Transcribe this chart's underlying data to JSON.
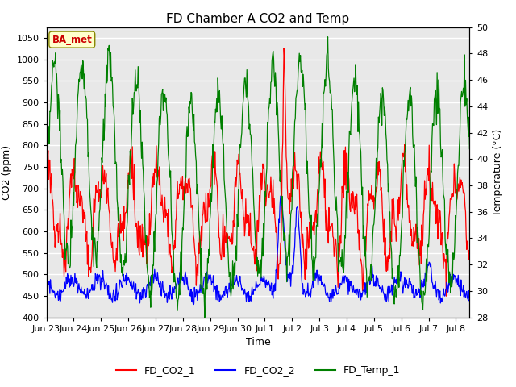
{
  "title": "FD Chamber A CO2 and Temp",
  "xlabel": "Time",
  "ylabel_left": "CO2 (ppm)",
  "ylabel_right": "Temperature (°C)",
  "ylim_left": [
    400,
    1075
  ],
  "ylim_right": [
    28,
    50
  ],
  "yticks_left": [
    400,
    450,
    500,
    550,
    600,
    650,
    700,
    750,
    800,
    850,
    900,
    950,
    1000,
    1050
  ],
  "yticks_right": [
    28,
    30,
    32,
    34,
    36,
    38,
    40,
    42,
    44,
    46,
    48,
    50
  ],
  "xtick_labels": [
    "Jun 23",
    "Jun 24",
    "Jun 25",
    "Jun 26",
    "Jun 27",
    "Jun 28",
    "Jun 29",
    "Jun 30",
    "Jul 1",
    "Jul 2",
    "Jul 3",
    "Jul 4",
    "Jul 5",
    "Jul 6",
    "Jul 7",
    "Jul 8"
  ],
  "legend_labels": [
    "FD_CO2_1",
    "FD_CO2_2",
    "FD_Temp_1"
  ],
  "legend_colors": [
    "red",
    "blue",
    "green"
  ],
  "annotation_text": "BA_met",
  "annotation_color": "#cc0000",
  "annotation_bg": "#ffffcc",
  "plot_bg": "#e8e8e8",
  "grid_color": "white",
  "title_fontsize": 11,
  "label_fontsize": 9,
  "tick_fontsize": 8,
  "n_days": 15.5,
  "xlim": [
    0,
    15.5
  ],
  "figsize": [
    6.4,
    4.8
  ],
  "dpi": 100,
  "subplots_adjust": [
    0.09,
    0.18,
    0.91,
    0.93
  ]
}
